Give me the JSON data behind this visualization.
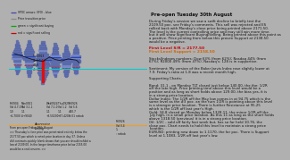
{
  "title": "Pre-open Tuesday 30th August",
  "left_bg": "#c8c8c8",
  "right_bg": "#f0f0f0",
  "legend_texts": [
    "VPOC arrows: (IFO) - blue",
    "Price transition price",
    "green = significant buying",
    "red = significant selling"
  ],
  "legend_colors": [
    "#4444aa",
    "#888888",
    "#00aa00",
    "#cc0000"
  ],
  "right_title": "Pre-open Tuesday 30th August",
  "right_text": "During Friday's session we saw a swift decline to briefly test the\n2109.50 poc, see Friday's comments. This sell was rejected and ES\nrallied back with Monday's close price being printed above 2171.50.\nThe level is the current controlling price and may still win more time.\nbut it will show Significant Buying/selling. Being printed above this point as\na positive. Price printing from below this proven Support at 2138.50\nwould be a negative.\n\nFirst Level S/R = 2177.50\nFirst Level Support = 2158.50\n\nStocks/Indexes numbers: Dow 63% (from 62%); Nasdaq 44% (from\n67%); R2000 49% (from 47%); Nasdaq's: 128 is in supportive.\n\nSentiment: My version of the Baker Jarvis Index rose slightly lower at\n7.9. Friday's ratio at 1.8 was a recent month high.\n\nSupporting Charts:\n\nBond: 31.1 - on Monday TLT closed just below 140.00, the the: 1/2R\noff the late high. Price printing time above this level would be a\npositive and as long as short holds above 129.00, the bias yes, it is\nin a strong price location.\nDollar Index: The 1/2R off the May low comes in at 94.75 which is the\nsame level as the #3 poc. an the turn 1/2R is pointing above this level\nis a stronger price location. There is further Resistance at 95.25\nwhich is the 1/2R off last year's High.\nGold: 34.8 closed on Monday below 1328.11, the minor 1/2R off the\nJuly high, in a small price location. As this 11 as long as the short holds\nabove 1318.50 (previous) it is in a strong price location.\nOil: 1/2C - sold off fairly fast week but, has so far held 10.76, the\nclose poc. Chart needs to hold this level to maintain a strong price\nlocation.\nEURUSD: printing new down to 1.1170, the far poc. There is Support\nlevel at 1.1083, 1/2R off last year's low.",
  "sr_line": "First Level S/R = 2177.50",
  "support_line": "First Level Support = 2158.50",
  "preopen_text": "From pre-open Friday 29th August\n>> Thursday's close price was penetrated entirely below the\n2177.50 poc which is noted price location in day 37. Unless\n## contracts quickly: blank shows that you are should exhibit a\nlow of 2109.00. In the longer timeframe price below 2155.00\nwould be a real concern. >>"
}
